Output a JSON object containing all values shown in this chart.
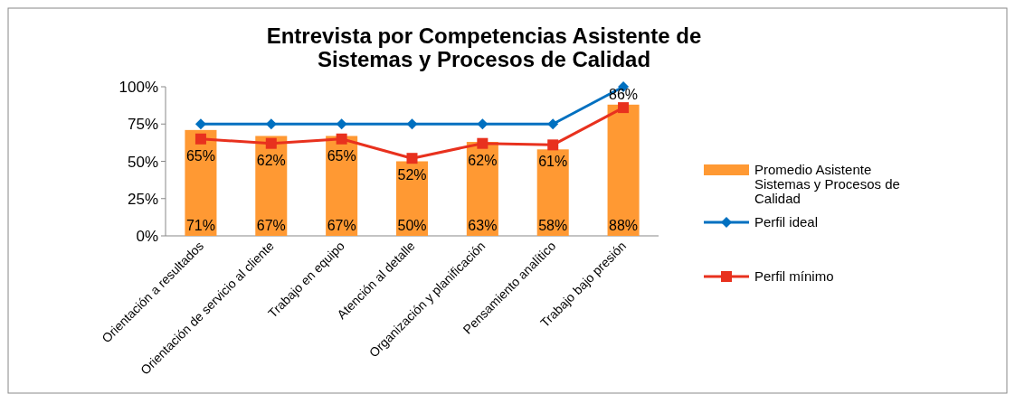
{
  "chart_data": {
    "type": "bar",
    "title": "Entrevista por Competencias Asistente de Sistemas y Procesos de Calidad",
    "categories": [
      "Orientación a resultados",
      "Orientación de servicio al cliente",
      "Trabajo en equipo",
      "Atención al detalle",
      "Organización y planificación",
      "Pensamiento analítico",
      "Trabajo bajo presión"
    ],
    "ylim": [
      0,
      100
    ],
    "yticks": [
      {
        "value": 0,
        "label": "0%"
      },
      {
        "value": 25,
        "label": "25%"
      },
      {
        "value": 50,
        "label": "50%"
      },
      {
        "value": 75,
        "label": "75%"
      },
      {
        "value": 100,
        "label": "100%"
      }
    ],
    "legend": "right",
    "grid": false,
    "series": [
      {
        "name": "Promedio Asistente Sistemas y Procesos de Calidad",
        "color": "#ff9933",
        "values": [
          71,
          67,
          67,
          50,
          63,
          58,
          88
        ],
        "value_labels": [
          "71%",
          "67%",
          "67%",
          "50%",
          "63%",
          "58%",
          "88%"
        ]
      },
      {
        "name": "Perfil ideal",
        "type": "line",
        "color": "#0070c0",
        "marker": "diamond",
        "values": [
          75,
          75,
          75,
          75,
          75,
          75,
          100
        ]
      },
      {
        "name": "Perfil mínimo",
        "type": "line",
        "color": "#e8311e",
        "marker": "square",
        "values": [
          65,
          62,
          65,
          52,
          62,
          61,
          86
        ],
        "value_labels": [
          "65%",
          "62%",
          "65%",
          "52%",
          "62%",
          "61%",
          "86%"
        ]
      }
    ]
  }
}
